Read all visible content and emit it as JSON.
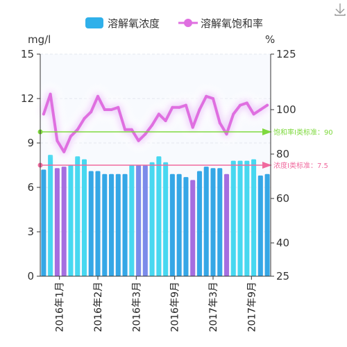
{
  "legend": {
    "items": [
      {
        "name": "溶解氧浓度",
        "color": "#2fb0ea"
      },
      {
        "name": "溶解氧饱和率",
        "color": "#df6fe0"
      }
    ]
  },
  "toolbar": {
    "download_icon": "download-icon"
  },
  "chart_data": {
    "type": "bar+line",
    "y_left": {
      "unit": "mg/l",
      "min": 0,
      "max": 15,
      "ticks": [
        0,
        3,
        6,
        9,
        12,
        15
      ]
    },
    "y_right": {
      "unit": "%",
      "min": 25,
      "max": 125,
      "ticks": [
        25,
        40,
        60,
        80,
        100,
        125
      ]
    },
    "x_tick_labels": [
      "2016年1月",
      "2016年2月",
      "2016年3月",
      "2016年9月",
      "2017年3月",
      "2017年9月"
    ],
    "series": [
      {
        "name": "溶解氧浓度",
        "type": "bar",
        "axis": "left",
        "values": [
          7.2,
          8.2,
          7.3,
          7.4,
          7.5,
          8.1,
          7.9,
          7.1,
          7.1,
          6.9,
          6.9,
          6.9,
          6.9,
          7.5,
          7.5,
          7.5,
          7.7,
          8.1,
          7.7,
          6.9,
          6.9,
          6.7,
          6.5,
          7.1,
          7.4,
          7.3,
          7.3,
          6.9,
          7.8,
          7.8,
          7.8,
          7.9,
          6.8,
          6.9
        ],
        "colors": [
          "#35a7e6",
          "#47d8f0",
          "#a56ee0",
          "#a56ee0",
          "#47d8f0",
          "#47d8f0",
          "#47d8f0",
          "#35a7e6",
          "#35a7e6",
          "#35a7e6",
          "#35a7e6",
          "#35a7e6",
          "#35a7e6",
          "#47d8f0",
          "#7b8bea",
          "#7b8bea",
          "#47d8f0",
          "#47d8f0",
          "#47d8f0",
          "#35a7e6",
          "#35a7e6",
          "#35a7e6",
          "#a56ee0",
          "#35a7e6",
          "#35a7e6",
          "#35a7e6",
          "#35a7e6",
          "#a56ee0",
          "#47d8f0",
          "#47d8f0",
          "#47d8f0",
          "#47d8f0",
          "#35a7e6",
          "#35a7e6"
        ]
      },
      {
        "name": "溶解氧饱和率",
        "type": "line",
        "axis": "right",
        "values": [
          98,
          107,
          86,
          81,
          88,
          91,
          96,
          99,
          106,
          100,
          100,
          101,
          91,
          91,
          86,
          89,
          93,
          98,
          95,
          101,
          101,
          102,
          92,
          100,
          106,
          105,
          94,
          89,
          98,
          102,
          103,
          98,
          100,
          102
        ]
      }
    ],
    "mark_lines": [
      {
        "label": "饱和率Ⅰ类标准：90",
        "axis": "right",
        "value": 90,
        "color": "#7fd93e"
      },
      {
        "label": "浓度Ⅰ类标准：7.5",
        "axis": "left",
        "value": 7.5,
        "color": "#f06a9e"
      }
    ]
  }
}
